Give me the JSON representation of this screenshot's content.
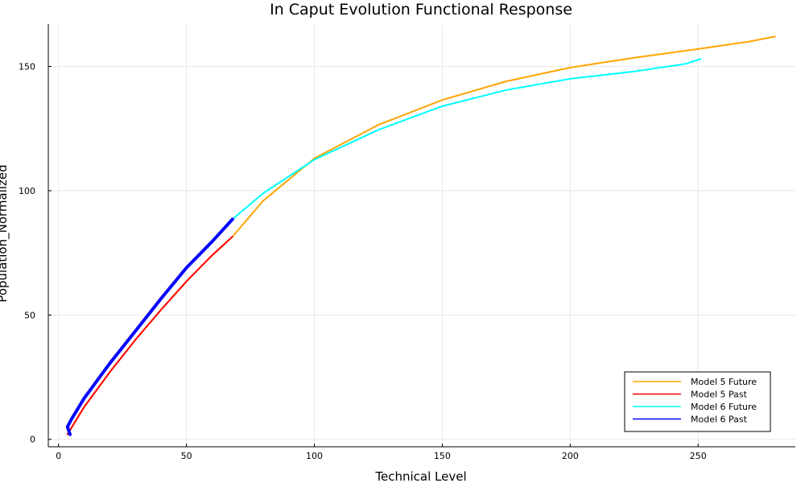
{
  "chart_data": {
    "type": "line",
    "title": "In Caput Evolution Functional Response",
    "xlabel": "Technical Level",
    "ylabel": "Population_Normalized",
    "xlim": [
      -4,
      288
    ],
    "ylim": [
      -3,
      167
    ],
    "xticks": [
      0,
      50,
      100,
      150,
      200,
      250
    ],
    "yticks": [
      0,
      50,
      100,
      150
    ],
    "grid": true,
    "legend_position": "bottom-right",
    "series": [
      {
        "name": "Model 5 Future",
        "color": "#ffa500",
        "x": [
          3.5,
          10,
          20,
          30,
          40,
          50,
          60,
          68,
          80,
          100,
          125,
          150,
          175,
          200,
          225,
          250,
          270,
          280
        ],
        "y": [
          2.0,
          13.0,
          27.0,
          40.0,
          52.0,
          63.5,
          74.0,
          81.5,
          96.0,
          113.0,
          126.5,
          136.5,
          144.0,
          149.5,
          153.5,
          157.0,
          160.0,
          162.0
        ]
      },
      {
        "name": "Model 5 Past",
        "color": "#ff0000",
        "x": [
          3.5,
          10,
          20,
          30,
          40,
          50,
          60,
          68
        ],
        "y": [
          2.0,
          13.0,
          27.0,
          40.0,
          52.0,
          63.5,
          74.0,
          81.5
        ]
      },
      {
        "name": "Model 6 Future",
        "color": "#00ffff",
        "x": [
          68,
          80,
          100,
          125,
          150,
          175,
          200,
          225,
          245,
          251
        ],
        "y": [
          88.5,
          99.0,
          112.5,
          124.5,
          134.0,
          140.5,
          145.0,
          148.0,
          151.0,
          153.0
        ]
      },
      {
        "name": "Model 6 Past",
        "color": "#0000ff",
        "x": [
          4.5,
          3.5,
          5,
          10,
          20,
          30,
          40,
          50,
          60,
          68
        ],
        "y": [
          2.0,
          5.0,
          8.0,
          16.5,
          30.5,
          43.5,
          56.5,
          69.0,
          79.5,
          88.5
        ]
      }
    ]
  }
}
